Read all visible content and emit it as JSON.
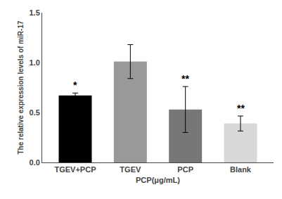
{
  "chart_data": {
    "type": "bar",
    "categories": [
      "TGEV+PCP",
      "TGEV",
      "PCP",
      "Blank"
    ],
    "values": [
      0.67,
      1.01,
      0.53,
      0.39
    ],
    "errors": [
      0.025,
      0.17,
      0.23,
      0.075
    ],
    "colors": [
      "#000000",
      "#999999",
      "#777777",
      "#d8d8d8"
    ],
    "annotations": [
      {
        "category": "TGEV+PCP",
        "text": "*"
      },
      {
        "category": "PCP",
        "text": "**"
      },
      {
        "category": "Blank",
        "text": "**"
      }
    ],
    "xlabel": "PCP(μg/mL)",
    "ylabel": "The relative expression levels of miR-17",
    "ylim": [
      0,
      1.5
    ],
    "yticks": [
      {
        "value": 0,
        "label": "0.0"
      },
      0.5,
      {
        "value": 1,
        "label": "1.0"
      },
      1.5
    ],
    "grid": false
  }
}
